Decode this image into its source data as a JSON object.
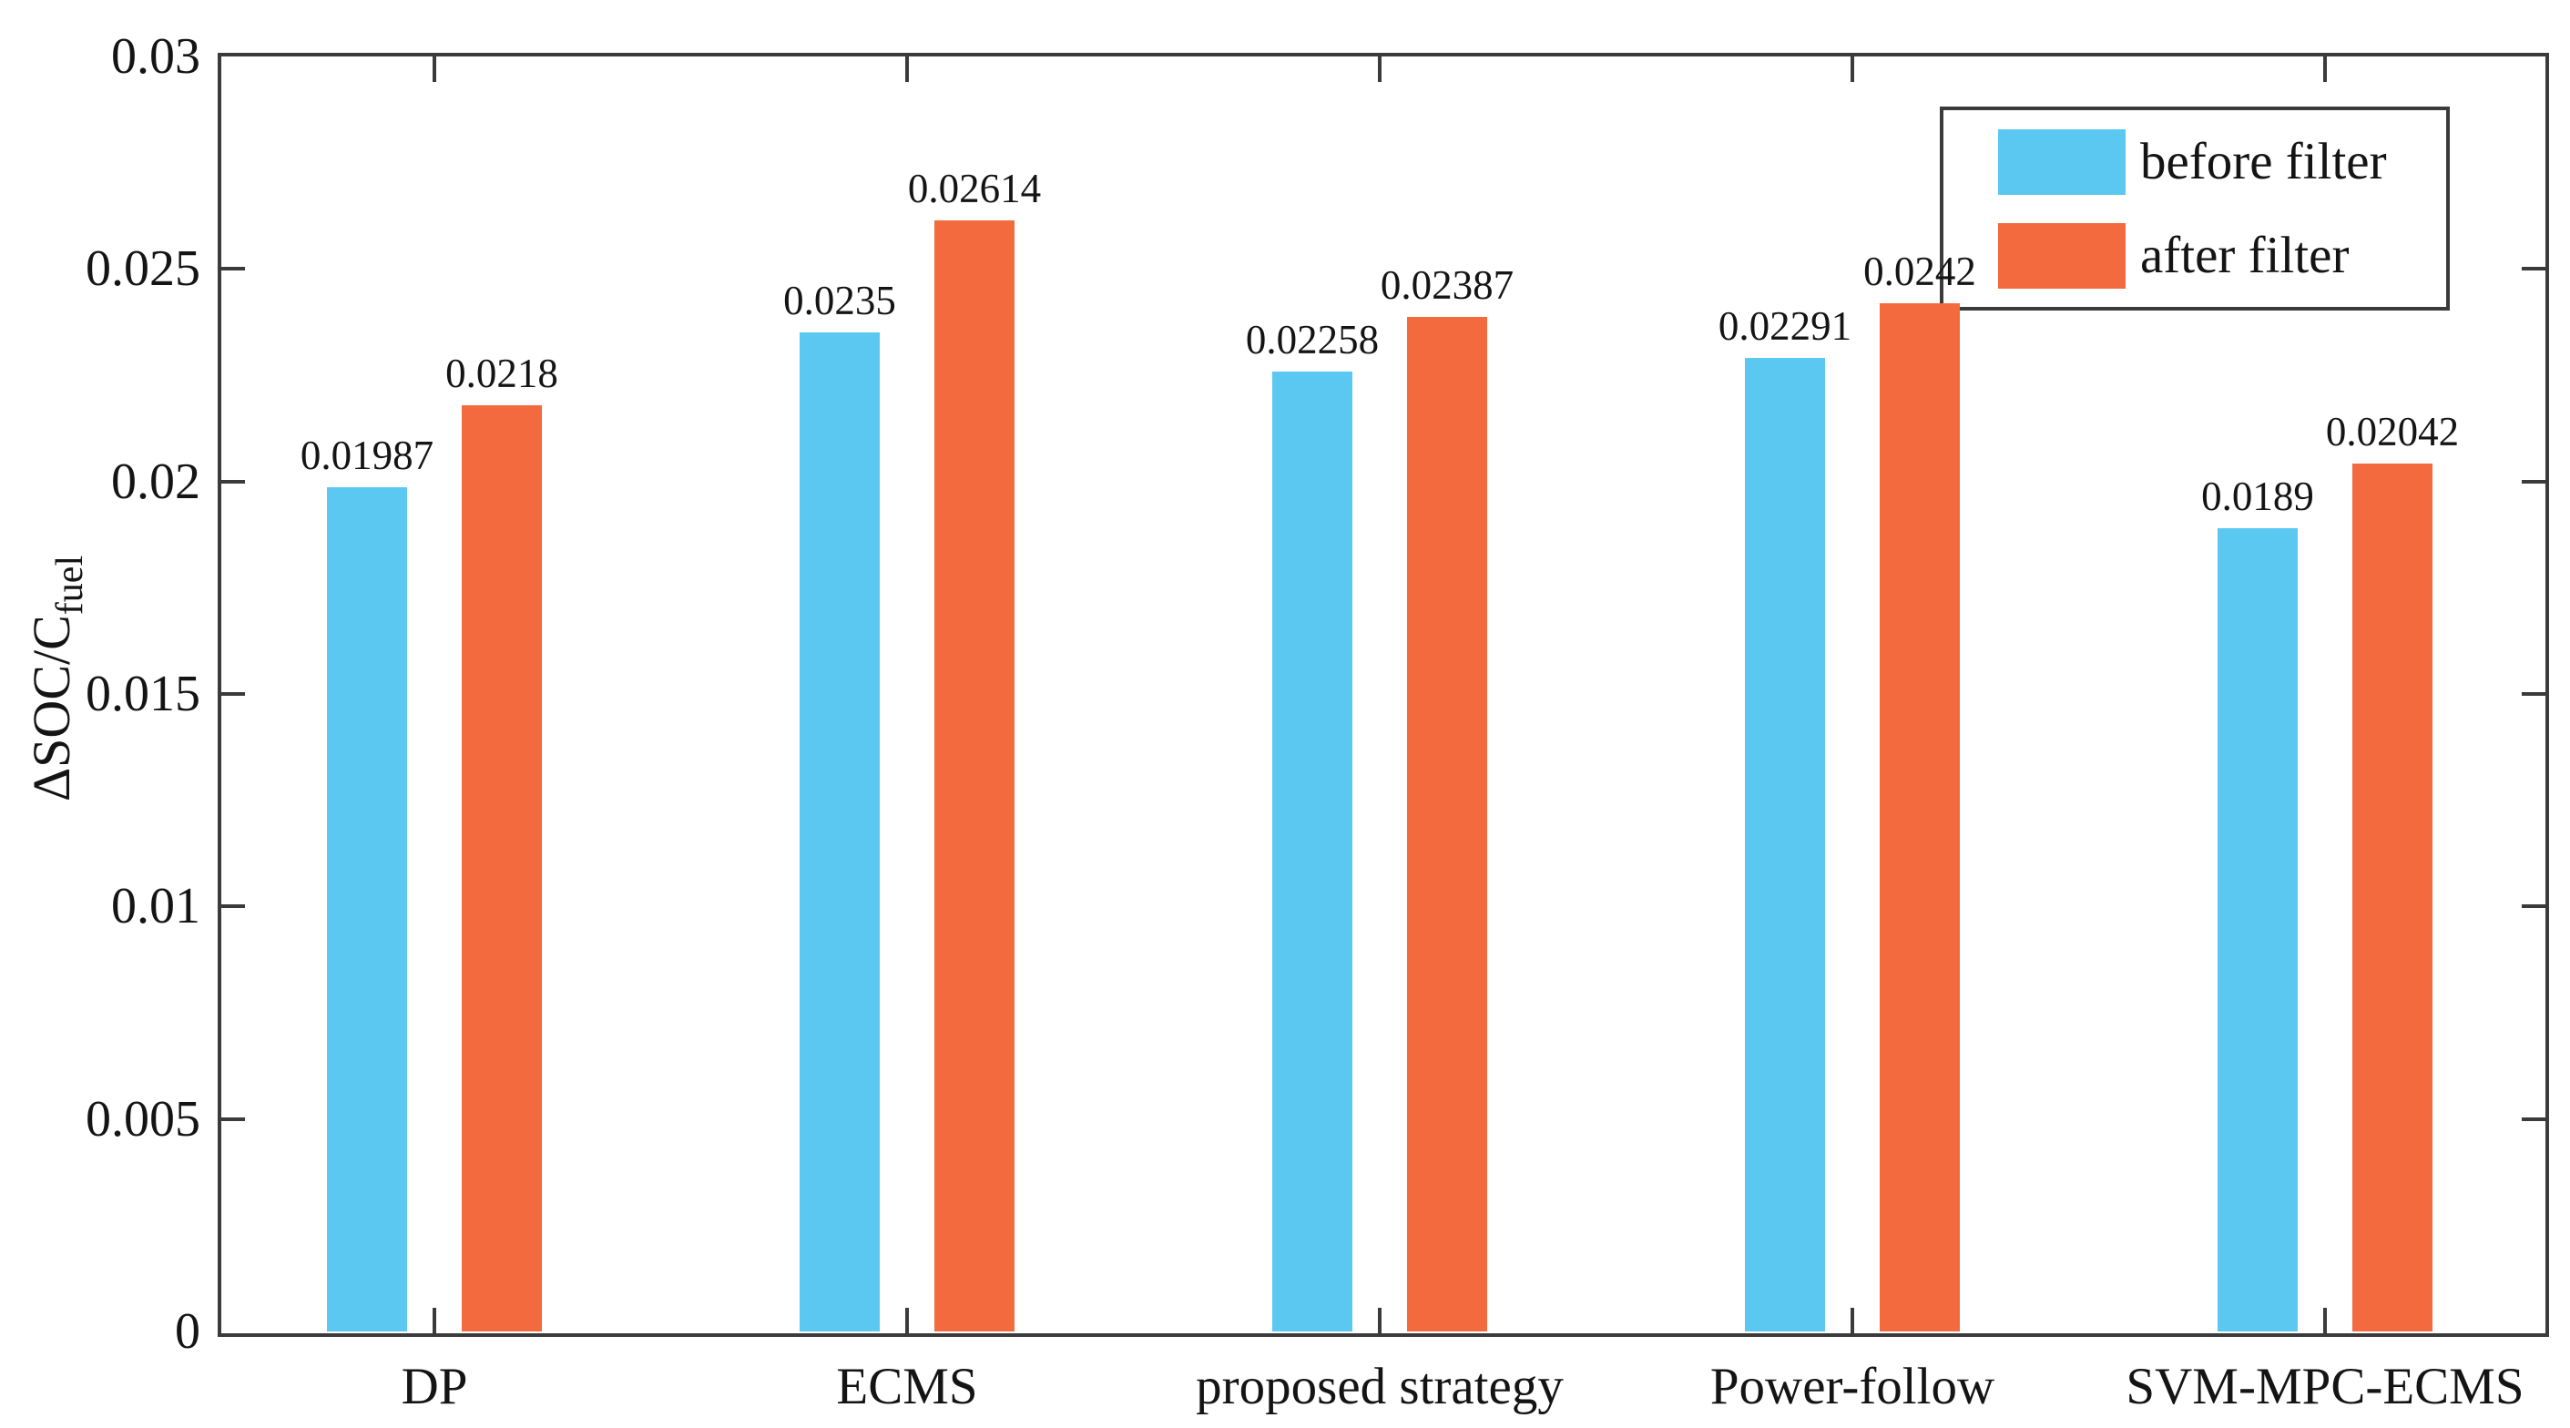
{
  "chart_data": {
    "type": "bar",
    "title": "",
    "categories": [
      "DP",
      "ECMS",
      "proposed strategy",
      "Power-follow",
      "SVM-MPC-ECMS"
    ],
    "series": [
      {
        "name": "before filter",
        "color": "#5BC8F2",
        "values": [
          0.01987,
          0.0235,
          0.02258,
          0.02291,
          0.0189
        ],
        "labels": [
          "0.01987",
          "0.0235",
          "0.02258",
          "0.02291",
          "0.0189"
        ]
      },
      {
        "name": "after filter",
        "color": "#F26A3E",
        "values": [
          0.0218,
          0.02614,
          0.02387,
          0.0242,
          0.02042
        ],
        "labels": [
          "0.0218",
          "0.02614",
          "0.02387",
          "0.0242",
          "0.02042"
        ]
      }
    ],
    "xlabel": "",
    "ylabel_main": "ΔSOC/C",
    "ylabel_sub": "fuel",
    "ylim": [
      0,
      0.03
    ],
    "ytick_values": [
      0,
      0.005,
      0.01,
      0.015,
      0.02,
      0.025,
      0.03
    ],
    "ytick_labels": [
      "0",
      "0.005",
      "0.01",
      "0.015",
      "0.02",
      "0.025",
      "0.03"
    ],
    "grid": false,
    "legend_position": "top-right",
    "axis_color": "#3B3B3B",
    "text_color": "#141414",
    "background_color": "#FFFFFF"
  }
}
